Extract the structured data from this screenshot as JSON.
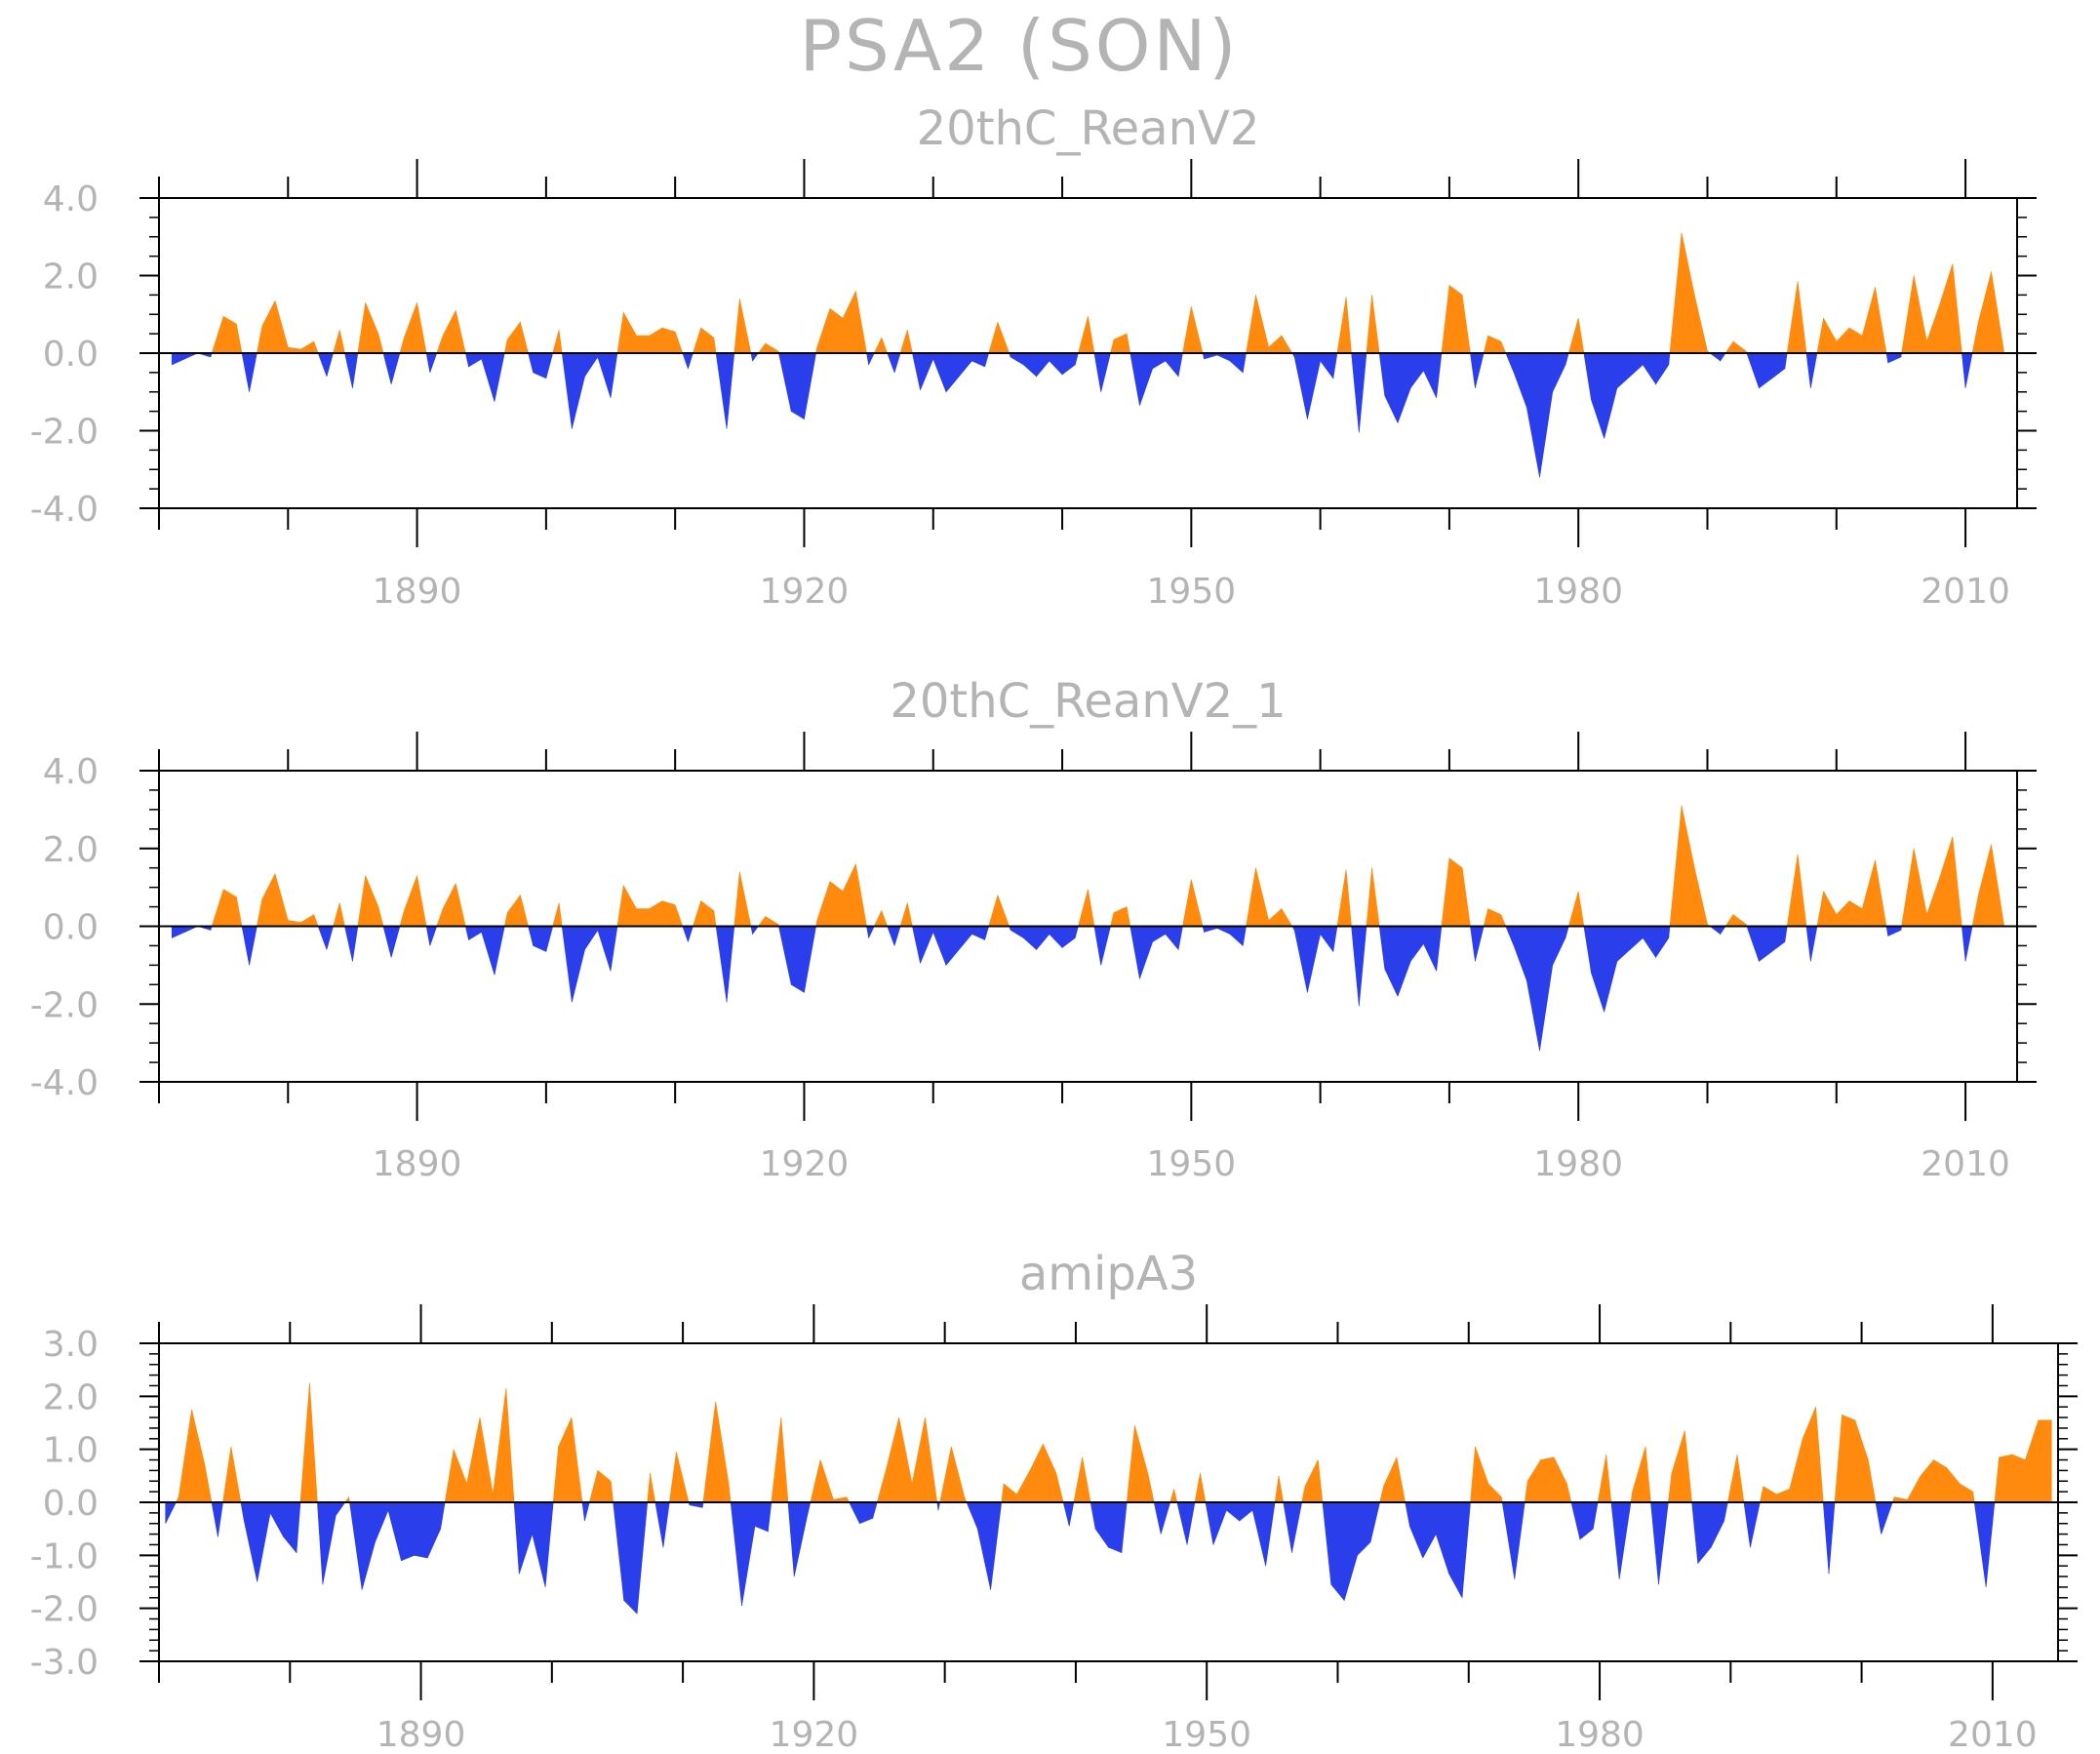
{
  "figure": {
    "title": "PSA2 (SON)",
    "colors": {
      "positive": "#ff8a0d",
      "negative": "#2b3eec",
      "frame": "#000000",
      "text": "#b4b4b4"
    }
  },
  "chart_data": [
    {
      "type": "area",
      "title": "20thC_ReanV2",
      "xlabel": "",
      "ylabel": "",
      "xlim": [
        1870,
        2014
      ],
      "ylim": [
        -4.0,
        4.0
      ],
      "ytick_labels": [
        "4.0",
        "2.0",
        "0.0",
        "-2.0",
        "-4.0"
      ],
      "xtick_labels": [
        "1890",
        "1920",
        "1950",
        "1980",
        "2010"
      ],
      "x_start": 1871,
      "x_step": 1,
      "values": [
        -0.3,
        -0.15,
        0.0,
        -0.1,
        0.95,
        0.75,
        -1.0,
        0.7,
        1.35,
        0.15,
        0.1,
        0.3,
        -0.6,
        0.6,
        -0.9,
        1.3,
        0.5,
        -0.8,
        0.4,
        1.3,
        -0.5,
        0.45,
        1.1,
        -0.35,
        -0.15,
        -1.25,
        0.35,
        0.8,
        -0.5,
        -0.65,
        0.6,
        -1.95,
        -0.6,
        -0.1,
        -1.15,
        1.05,
        0.45,
        0.45,
        0.65,
        0.55,
        -0.4,
        0.65,
        0.4,
        -1.95,
        1.4,
        -0.2,
        0.25,
        0.05,
        -1.5,
        -1.7,
        0.15,
        1.15,
        0.9,
        1.6,
        -0.3,
        0.4,
        -0.5,
        0.6,
        -0.95,
        -0.15,
        -1.0,
        -0.6,
        -0.2,
        -0.35,
        0.8,
        -0.1,
        -0.3,
        -0.6,
        -0.2,
        -0.55,
        -0.3,
        0.95,
        -1.0,
        0.35,
        0.5,
        -1.35,
        -0.4,
        -0.2,
        -0.6,
        1.2,
        -0.15,
        -0.05,
        -0.2,
        -0.5,
        1.5,
        0.15,
        0.45,
        -0.1,
        -1.7,
        -0.2,
        -0.65,
        1.45,
        -2.05,
        1.5,
        -1.1,
        -1.8,
        -0.9,
        -0.45,
        -1.15,
        1.75,
        1.5,
        -0.9,
        0.45,
        0.3,
        -0.5,
        -1.4,
        -3.2,
        -1.0,
        -0.3,
        0.9,
        -1.2,
        -2.2,
        -0.9,
        -0.6,
        -0.3,
        -0.8,
        -0.3,
        3.1,
        1.5,
        0.05,
        -0.2,
        0.3,
        0.05,
        -0.9,
        -0.65,
        -0.4,
        1.85,
        -0.9,
        0.9,
        0.3,
        0.65,
        0.45,
        1.7,
        -0.25,
        -0.1,
        2.0,
        0.3,
        1.25,
        2.3,
        -0.9,
        0.8,
        2.1,
        0.0
      ]
    },
    {
      "type": "area",
      "title": "20thC_ReanV2_1",
      "xlabel": "",
      "ylabel": "",
      "xlim": [
        1870,
        2014
      ],
      "ylim": [
        -4.0,
        4.0
      ],
      "ytick_labels": [
        "4.0",
        "2.0",
        "0.0",
        "-2.0",
        "-4.0"
      ],
      "xtick_labels": [
        "1890",
        "1920",
        "1950",
        "1980",
        "2010"
      ],
      "x_start": 1871,
      "x_step": 1,
      "values": [
        -0.3,
        -0.15,
        0.0,
        -0.1,
        0.95,
        0.75,
        -1.0,
        0.7,
        1.35,
        0.15,
        0.1,
        0.3,
        -0.6,
        0.6,
        -0.9,
        1.3,
        0.5,
        -0.8,
        0.4,
        1.3,
        -0.5,
        0.45,
        1.1,
        -0.35,
        -0.15,
        -1.25,
        0.35,
        0.8,
        -0.5,
        -0.65,
        0.6,
        -1.95,
        -0.6,
        -0.1,
        -1.15,
        1.05,
        0.45,
        0.45,
        0.65,
        0.55,
        -0.4,
        0.65,
        0.4,
        -1.95,
        1.4,
        -0.2,
        0.25,
        0.05,
        -1.5,
        -1.7,
        0.15,
        1.15,
        0.9,
        1.6,
        -0.3,
        0.4,
        -0.5,
        0.6,
        -0.95,
        -0.15,
        -1.0,
        -0.6,
        -0.2,
        -0.35,
        0.8,
        -0.1,
        -0.3,
        -0.6,
        -0.2,
        -0.55,
        -0.3,
        0.95,
        -1.0,
        0.35,
        0.5,
        -1.35,
        -0.4,
        -0.2,
        -0.6,
        1.2,
        -0.15,
        -0.05,
        -0.2,
        -0.5,
        1.5,
        0.15,
        0.45,
        -0.1,
        -1.7,
        -0.2,
        -0.65,
        1.45,
        -2.05,
        1.5,
        -1.1,
        -1.8,
        -0.9,
        -0.45,
        -1.15,
        1.75,
        1.5,
        -0.9,
        0.45,
        0.3,
        -0.5,
        -1.4,
        -3.2,
        -1.0,
        -0.3,
        0.9,
        -1.2,
        -2.2,
        -0.9,
        -0.6,
        -0.3,
        -0.8,
        -0.3,
        3.1,
        1.5,
        0.05,
        -0.2,
        0.3,
        0.05,
        -0.9,
        -0.65,
        -0.4,
        1.85,
        -0.9,
        0.9,
        0.3,
        0.65,
        0.45,
        1.7,
        -0.25,
        -0.1,
        2.0,
        0.3,
        1.25,
        2.3,
        -0.9,
        0.8,
        2.1,
        0.0
      ]
    },
    {
      "type": "area",
      "title": "amipA3",
      "xlabel": "",
      "ylabel": "",
      "xlim": [
        1870,
        2015
      ],
      "ylim": [
        -3.0,
        3.0
      ],
      "ytick_labels": [
        "3.0",
        "2.0",
        "1.0",
        "0.0",
        "-1.0",
        "-2.0",
        "-3.0"
      ],
      "xtick_labels": [
        "1890",
        "1920",
        "1950",
        "1980",
        "2010"
      ],
      "x_start": 1870.5,
      "x_step": 1,
      "values": [
        -0.4,
        0.1,
        1.75,
        0.7,
        -0.65,
        1.05,
        -0.35,
        -1.5,
        -0.2,
        -0.65,
        -0.95,
        2.25,
        -1.55,
        -0.25,
        0.1,
        -1.65,
        -0.75,
        -0.15,
        -1.1,
        -1.0,
        -1.05,
        -0.5,
        1.0,
        0.35,
        1.6,
        0.15,
        2.15,
        -1.35,
        -0.6,
        -1.6,
        1.05,
        1.6,
        -0.35,
        0.6,
        0.4,
        -1.85,
        -2.1,
        0.55,
        -0.85,
        0.95,
        -0.05,
        -0.1,
        1.9,
        0.35,
        -1.95,
        -0.45,
        -0.55,
        1.6,
        -1.4,
        -0.25,
        0.8,
        0.05,
        0.1,
        -0.4,
        -0.3,
        0.6,
        1.6,
        0.35,
        1.6,
        -0.15,
        1.05,
        0.1,
        -0.5,
        -1.65,
        0.35,
        0.15,
        0.6,
        1.1,
        0.55,
        -0.45,
        0.85,
        -0.5,
        -0.85,
        -0.95,
        1.45,
        0.55,
        -0.6,
        0.25,
        -0.8,
        0.55,
        -0.8,
        -0.15,
        -0.35,
        -0.15,
        -1.2,
        0.5,
        -0.95,
        0.3,
        0.8,
        -1.55,
        -1.85,
        -1.0,
        -0.75,
        0.3,
        0.85,
        -0.45,
        -1.05,
        -0.6,
        -1.35,
        -1.8,
        1.05,
        0.35,
        0.1,
        -1.45,
        0.4,
        0.8,
        0.85,
        0.35,
        -0.7,
        -0.5,
        0.9,
        -1.45,
        0.2,
        1.05,
        -1.55,
        0.55,
        1.35,
        -1.15,
        -0.85,
        -0.35,
        0.9,
        -0.85,
        0.3,
        0.15,
        0.25,
        1.2,
        1.8,
        -1.35,
        1.65,
        1.55,
        0.8,
        -0.6,
        0.1,
        0.05,
        0.5,
        0.8,
        0.65,
        0.35,
        0.2,
        -1.6,
        0.85,
        0.9,
        0.8,
        1.55,
        1.55
      ]
    }
  ]
}
